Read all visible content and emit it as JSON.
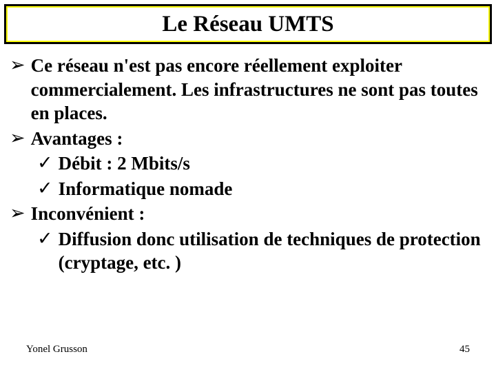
{
  "title": "Le Réseau UMTS",
  "bullets": [
    {
      "level": 1,
      "marker": "➢",
      "text": "Ce réseau n'est pas encore réellement exploiter commercialement. Les infrastructures ne sont pas toutes en places."
    },
    {
      "level": 1,
      "marker": "➢",
      "text": "Avantages :"
    },
    {
      "level": 2,
      "marker": "✓",
      "text": "Débit : 2 Mbits/s"
    },
    {
      "level": 2,
      "marker": "✓",
      "text": "Informatique nomade"
    },
    {
      "level": 1,
      "marker": "➢",
      "text": "Inconvénient :"
    },
    {
      "level": 2,
      "marker": "✓",
      "text": "Diffusion donc utilisation de techniques de protection (cryptage, etc. )"
    }
  ],
  "footer": {
    "author": "Yonel Grusson",
    "page": "45"
  },
  "colors": {
    "background": "#ffffff",
    "title_border_outer": "#000000",
    "title_border_inner": "#ffff00",
    "title_bg": "#ffffff",
    "text": "#000000"
  }
}
